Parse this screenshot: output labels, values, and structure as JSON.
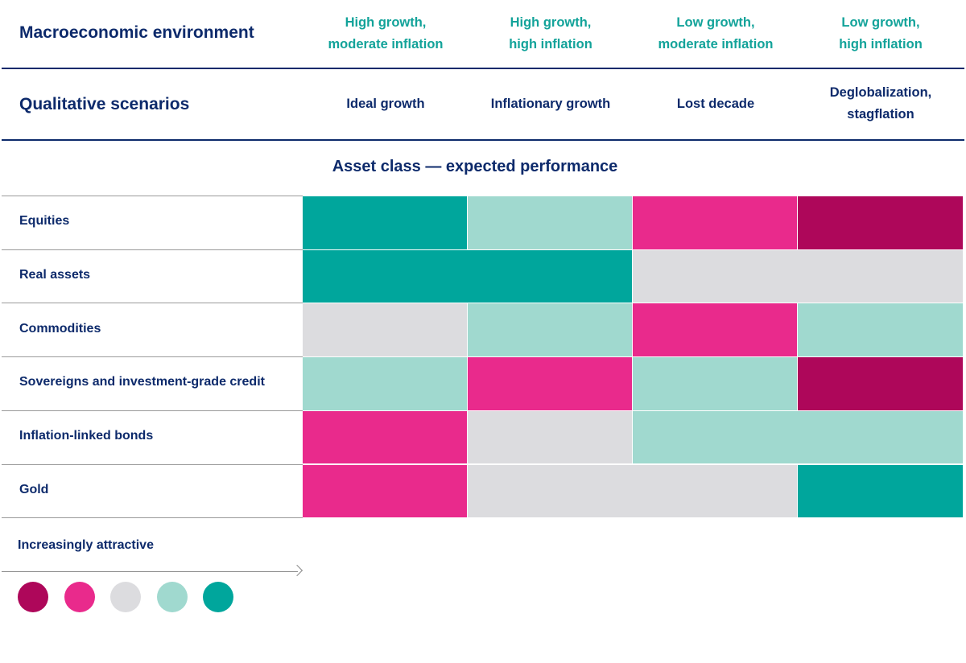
{
  "header": {
    "env_label": "Macroeconomic environment",
    "scenario_label": "Qualitative scenarios",
    "section_title": "Asset class — expected performance",
    "legend_title": "Increasingly attractive"
  },
  "colors": {
    "1": "#ae075a",
    "2": "#e92a8c",
    "3": "#dcdcdf",
    "4": "#a0d9cf",
    "5": "#00a69c",
    "header_teal": "#13a39a",
    "navy": "#0d2a6b"
  },
  "chart_data": {
    "type": "heatmap",
    "columns": [
      {
        "environment": [
          "High growth,",
          "moderate inflation"
        ],
        "scenario": [
          "Ideal growth"
        ]
      },
      {
        "environment": [
          "High growth,",
          "high inflation"
        ],
        "scenario": [
          "Inflationary growth"
        ]
      },
      {
        "environment": [
          "Low growth,",
          "moderate inflation"
        ],
        "scenario": [
          "Lost decade"
        ]
      },
      {
        "environment": [
          "Low growth,",
          "high inflation"
        ],
        "scenario": [
          "Deglobalization,",
          "stagflation"
        ]
      }
    ],
    "rows": [
      {
        "label": "Equities",
        "values": [
          5,
          4,
          2,
          1
        ]
      },
      {
        "label": "Real assets",
        "values": [
          5,
          5,
          3,
          3
        ]
      },
      {
        "label": "Commodities",
        "values": [
          3,
          4,
          2,
          4
        ]
      },
      {
        "label": "Sovereigns and investment-grade credit",
        "values": [
          4,
          2,
          4,
          1
        ]
      },
      {
        "label": "Inflation-linked bonds",
        "values": [
          2,
          3,
          4,
          4
        ]
      },
      {
        "label": "Gold",
        "values": [
          2,
          3,
          3,
          5
        ]
      }
    ],
    "scale": [
      1,
      2,
      3,
      4,
      5
    ]
  }
}
